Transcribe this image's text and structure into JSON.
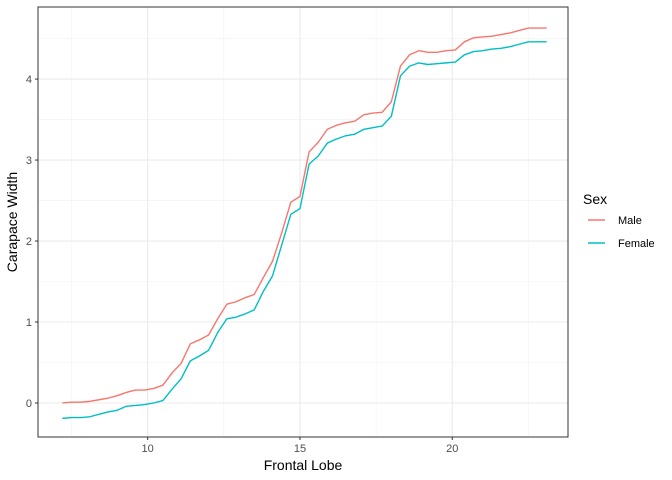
{
  "chart_data": {
    "type": "line",
    "xlabel": "Frontal Lobe",
    "ylabel": "Carapace Width",
    "xlim": [
      6.4,
      23.8
    ],
    "ylim": [
      -0.42,
      4.89
    ],
    "x_ticks": [
      10,
      15,
      20
    ],
    "x_tick_labels": [
      "10",
      "15",
      "20"
    ],
    "y_ticks": [
      0,
      1,
      2,
      3,
      4
    ],
    "y_tick_labels": [
      "0",
      "1",
      "2",
      "3",
      "4"
    ],
    "grid": true,
    "legend": {
      "title": "Sex",
      "position": "right"
    },
    "series": [
      {
        "name": "Male",
        "color": "#F8766D",
        "x": [
          7.2,
          7.5,
          7.8,
          8.1,
          8.4,
          8.7,
          9.0,
          9.3,
          9.6,
          9.9,
          10.2,
          10.5,
          10.8,
          11.1,
          11.4,
          11.7,
          12.0,
          12.3,
          12.6,
          12.9,
          13.2,
          13.5,
          13.8,
          14.1,
          14.4,
          14.7,
          15.0,
          15.3,
          15.6,
          15.9,
          16.2,
          16.5,
          16.8,
          17.1,
          17.4,
          17.7,
          18.0,
          18.3,
          18.6,
          18.9,
          19.2,
          19.5,
          19.8,
          20.1,
          20.4,
          20.7,
          21.0,
          21.3,
          21.6,
          21.9,
          22.2,
          22.5,
          22.8,
          23.1
        ],
        "y": [
          0.0,
          0.01,
          0.01,
          0.02,
          0.04,
          0.06,
          0.09,
          0.13,
          0.16,
          0.16,
          0.18,
          0.22,
          0.37,
          0.49,
          0.73,
          0.78,
          0.84,
          1.04,
          1.22,
          1.25,
          1.3,
          1.34,
          1.55,
          1.75,
          2.1,
          2.48,
          2.55,
          3.1,
          3.22,
          3.38,
          3.43,
          3.46,
          3.48,
          3.56,
          3.58,
          3.59,
          3.72,
          4.16,
          4.3,
          4.35,
          4.33,
          4.33,
          4.35,
          4.36,
          4.46,
          4.51,
          4.52,
          4.53,
          4.55,
          4.57,
          4.6,
          4.63,
          4.63,
          4.63
        ]
      },
      {
        "name": "Female",
        "color": "#00BFC4",
        "x": [
          7.2,
          7.5,
          7.8,
          8.1,
          8.4,
          8.7,
          9.0,
          9.3,
          9.6,
          9.9,
          10.2,
          10.5,
          10.8,
          11.1,
          11.4,
          11.7,
          12.0,
          12.3,
          12.6,
          12.9,
          13.2,
          13.5,
          13.8,
          14.1,
          14.4,
          14.7,
          15.0,
          15.3,
          15.6,
          15.9,
          16.2,
          16.5,
          16.8,
          17.1,
          17.4,
          17.7,
          18.0,
          18.3,
          18.6,
          18.9,
          19.2,
          19.5,
          19.8,
          20.1,
          20.4,
          20.7,
          21.0,
          21.3,
          21.6,
          21.9,
          22.2,
          22.5,
          22.8,
          23.1
        ],
        "y": [
          -0.19,
          -0.18,
          -0.18,
          -0.17,
          -0.14,
          -0.11,
          -0.09,
          -0.04,
          -0.03,
          -0.02,
          0.0,
          0.03,
          0.17,
          0.3,
          0.52,
          0.58,
          0.65,
          0.87,
          1.04,
          1.06,
          1.1,
          1.15,
          1.38,
          1.57,
          1.95,
          2.33,
          2.4,
          2.95,
          3.05,
          3.21,
          3.26,
          3.3,
          3.32,
          3.38,
          3.4,
          3.42,
          3.54,
          4.04,
          4.16,
          4.2,
          4.18,
          4.19,
          4.2,
          4.21,
          4.3,
          4.34,
          4.35,
          4.37,
          4.38,
          4.4,
          4.43,
          4.46,
          4.46,
          4.46
        ]
      }
    ]
  }
}
